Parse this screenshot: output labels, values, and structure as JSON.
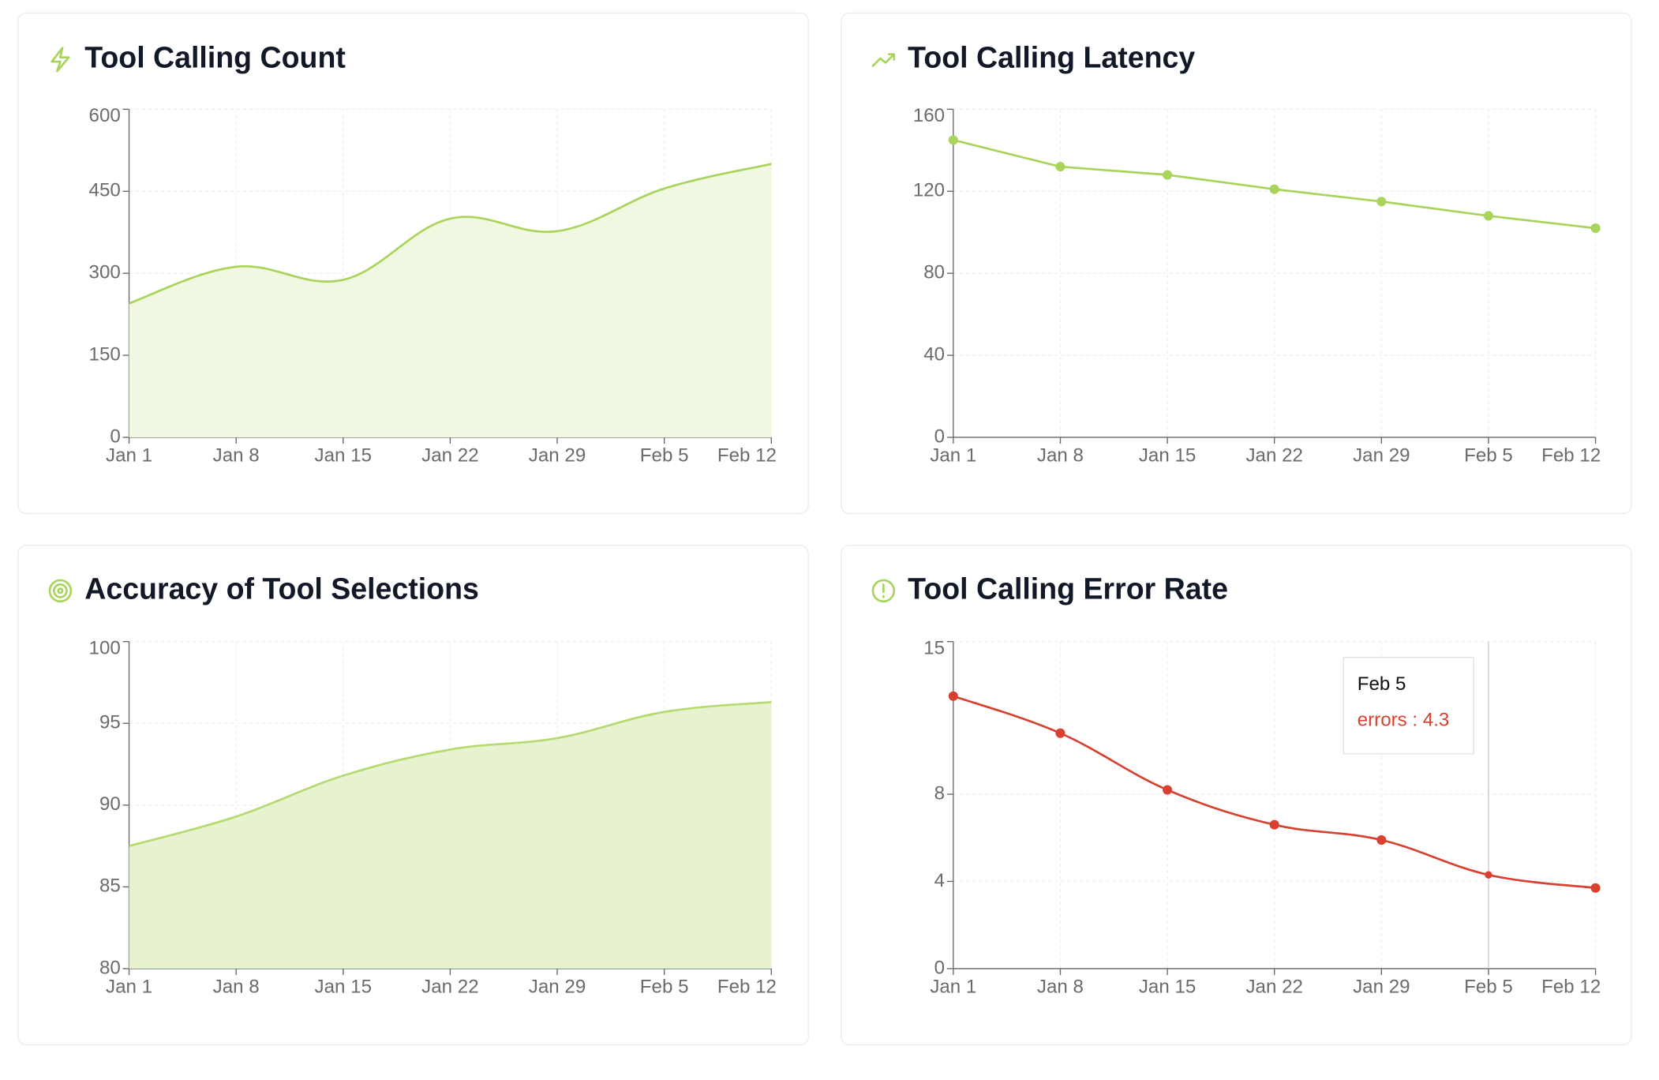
{
  "chart_data": [
    {
      "type": "area",
      "title": "Tool Calling Count",
      "categories": [
        "Jan 1",
        "Jan 8",
        "Jan 15",
        "Jan 22",
        "Jan 29",
        "Feb 5",
        "Feb 12"
      ],
      "values": [
        245,
        312,
        288,
        400,
        377,
        455,
        500
      ],
      "color": "#a9d45c",
      "fill": "#f1f8e1",
      "smooth": true,
      "markers": false,
      "ylim": [
        0,
        600
      ],
      "yticks": [
        0,
        150,
        300,
        450,
        600
      ],
      "grid": true
    },
    {
      "type": "line",
      "title": "Tool Calling Latency",
      "categories": [
        "Jan 1",
        "Jan 8",
        "Jan 15",
        "Jan 22",
        "Jan 29",
        "Feb 5",
        "Feb 12"
      ],
      "values": [
        145,
        132,
        128,
        121,
        115,
        108,
        102
      ],
      "color": "#a9d45c",
      "smooth": false,
      "markers": true,
      "ylim": [
        0,
        160
      ],
      "yticks": [
        0,
        40,
        80,
        120,
        160
      ],
      "grid": true
    },
    {
      "type": "area",
      "title": "Accuracy of Tool Selections",
      "categories": [
        "Jan 1",
        "Jan 8",
        "Jan 15",
        "Jan 22",
        "Jan 29",
        "Feb 5",
        "Feb 12"
      ],
      "values": [
        87.5,
        89.3,
        91.8,
        93.4,
        94.1,
        95.7,
        96.3
      ],
      "color": "#b5da70",
      "fill": "#e7f3d0",
      "smooth": true,
      "markers": false,
      "ylim": [
        80,
        100
      ],
      "yticks": [
        80,
        85,
        90,
        95,
        100
      ],
      "grid": true
    },
    {
      "type": "line",
      "title": "Tool Calling Error Rate",
      "categories": [
        "Jan 1",
        "Jan 8",
        "Jan 15",
        "Jan 22",
        "Jan 29",
        "Feb 5",
        "Feb 12"
      ],
      "series": [
        {
          "name": "errors",
          "color": "#d8412f",
          "values": [
            12.5,
            10.8,
            8.2,
            6.6,
            5.9,
            4.3,
            3.7
          ]
        }
      ],
      "smooth": true,
      "markers": true,
      "ylim": [
        0,
        15
      ],
      "yticks": [
        0,
        4,
        8,
        15
      ],
      "grid": true,
      "tooltip": {
        "x": "Feb 5",
        "text": "errors : 4.3"
      }
    }
  ]
}
